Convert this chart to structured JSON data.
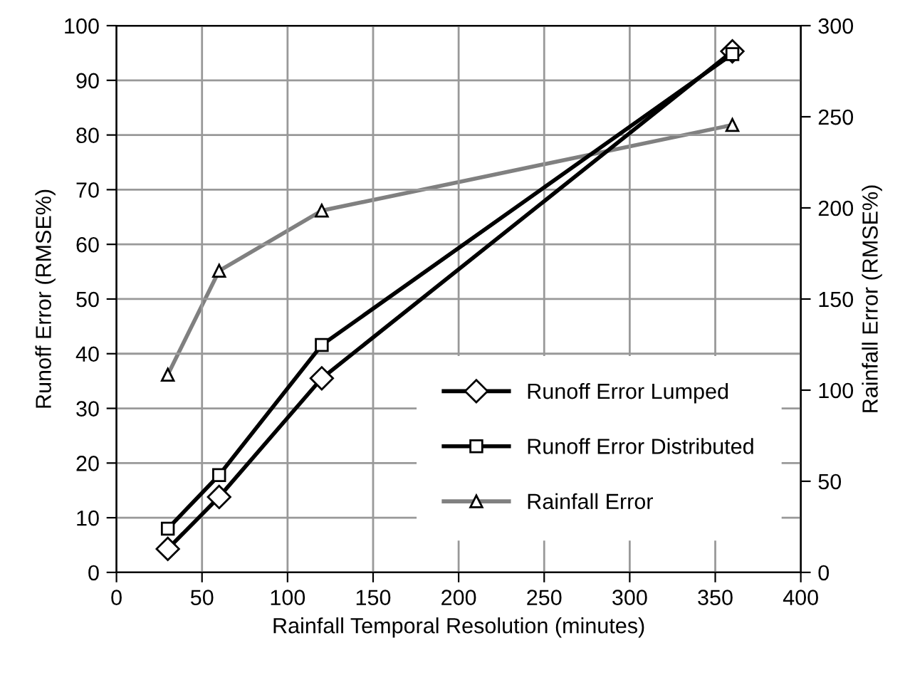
{
  "chart_data": {
    "type": "line",
    "xlabel": "Rainfall Temporal Resolution (minutes)",
    "ylabel": "Runoff Error (RMSE%)",
    "y2label": "Rainfall Error (RMSE%)",
    "x": [
      30,
      60,
      120,
      360
    ],
    "series": [
      {
        "name": "Runoff Error Lumped",
        "color": "#000000",
        "marker": "diamond",
        "values": [
          4.3,
          13.8,
          35.5,
          95.3
        ]
      },
      {
        "name": "Runoff Error Distributed",
        "color": "#000000",
        "marker": "square",
        "values": [
          8.0,
          17.8,
          41.6,
          94.8
        ]
      },
      {
        "name": "Rainfall Error",
        "color": "#808080",
        "marker": "triangle",
        "axis": "y2",
        "values": [
          108.5,
          165.5,
          198.5,
          245.5
        ]
      }
    ],
    "xlim": [
      0,
      400
    ],
    "xticks": [
      0,
      50,
      100,
      150,
      200,
      250,
      300,
      350,
      400
    ],
    "ylim": [
      0,
      100
    ],
    "yticks": [
      0,
      10,
      20,
      30,
      40,
      50,
      60,
      70,
      80,
      90,
      100
    ],
    "y2lim": [
      0,
      300
    ],
    "y2ticks": [
      0,
      50,
      100,
      150,
      200,
      250,
      300
    ],
    "grid": true,
    "legend": "bottom right",
    "line_style": "solid"
  }
}
